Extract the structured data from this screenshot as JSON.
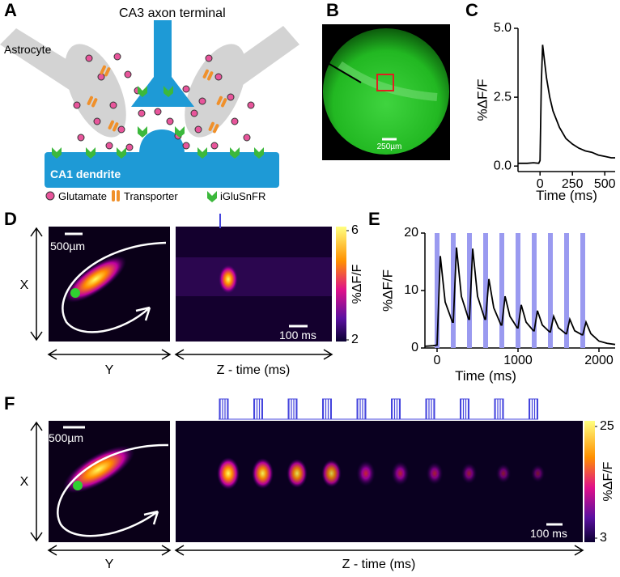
{
  "panel_labels": [
    "A",
    "B",
    "C",
    "D",
    "E",
    "F"
  ],
  "diagram": {
    "axon_label": "CA3 axon terminal",
    "astrocyte_label": "Astrocyte",
    "dendrite_label": "CA1 dendrite",
    "legend": [
      "Glutamate",
      "Transporter",
      "iGluSnFR"
    ]
  },
  "panel_b": {
    "scale_bar": "250µm"
  },
  "panel_d": {
    "scale_bar_space": "500µm",
    "scale_bar_time": "100 ms",
    "axis_x": "X",
    "axis_y": "Y",
    "axis_z": "Z - time (ms)",
    "colorbar": {
      "label": "%ΔF/F",
      "ticks": [
        2,
        6
      ]
    }
  },
  "panel_f": {
    "scale_bar_space": "500µm",
    "scale_bar_time": "100 ms",
    "axis_x": "X",
    "axis_y": "Y",
    "axis_z": "Z - time (ms)",
    "colorbar": {
      "label": "%ΔF/F",
      "ticks": [
        3,
        25
      ]
    }
  },
  "chart_data": [
    {
      "type": "line",
      "color": "#000000",
      "xlabel": "Time (ms)",
      "ylabel": "%ΔF/F",
      "x": [
        -170,
        -100,
        -50,
        -10,
        0,
        10,
        20,
        30,
        50,
        75,
        100,
        150,
        200,
        250,
        300,
        350,
        400,
        450,
        500,
        550,
        580
      ],
      "values": [
        0.1,
        0.1,
        0.12,
        0.1,
        0.2,
        3.0,
        4.4,
        4.0,
        3.2,
        2.5,
        2.0,
        1.4,
        1.0,
        0.8,
        0.65,
        0.55,
        0.5,
        0.4,
        0.35,
        0.3,
        0.3
      ],
      "xlim": [
        -170,
        580
      ],
      "ylim": [
        -0.2,
        5
      ],
      "xticks": [
        0,
        250,
        500
      ],
      "yticks": [
        {
          "value": 0,
          "label": "0.0"
        },
        2.5,
        {
          "value": 5,
          "label": "5.0"
        }
      ]
    },
    {
      "type": "line",
      "color": "#000000",
      "xlabel": "Time (ms)",
      "ylabel": "%ΔF/F",
      "stimulus_times": [
        0,
        200,
        400,
        600,
        800,
        1000,
        1200,
        1400,
        1600,
        1800
      ],
      "stimulus_color": "#9a9af0",
      "x": [
        -150,
        -50,
        0,
        40,
        100,
        190,
        200,
        240,
        300,
        390,
        400,
        440,
        500,
        590,
        600,
        640,
        700,
        790,
        800,
        840,
        900,
        990,
        1000,
        1040,
        1100,
        1190,
        1200,
        1240,
        1300,
        1390,
        1400,
        1440,
        1500,
        1590,
        1600,
        1640,
        1700,
        1790,
        1800,
        1840,
        1900,
        2000,
        2100,
        2200
      ],
      "values": [
        0.3,
        0.4,
        0.5,
        16,
        8,
        4.5,
        4.5,
        17.5,
        9,
        5,
        5,
        17.3,
        9,
        5,
        5,
        12,
        7,
        4,
        4,
        9,
        5.5,
        3.5,
        3.5,
        7.5,
        4.5,
        3,
        3,
        6.5,
        4,
        2.8,
        2.8,
        5.5,
        3.5,
        2.5,
        2.5,
        5,
        3,
        2.3,
        2.3,
        4.5,
        2.5,
        1.2,
        0.8,
        0.6
      ],
      "xlim": [
        -150,
        2200
      ],
      "ylim": [
        0,
        20
      ],
      "xticks": [
        0,
        1000,
        2000
      ],
      "yticks": [
        0,
        10,
        20
      ]
    }
  ]
}
